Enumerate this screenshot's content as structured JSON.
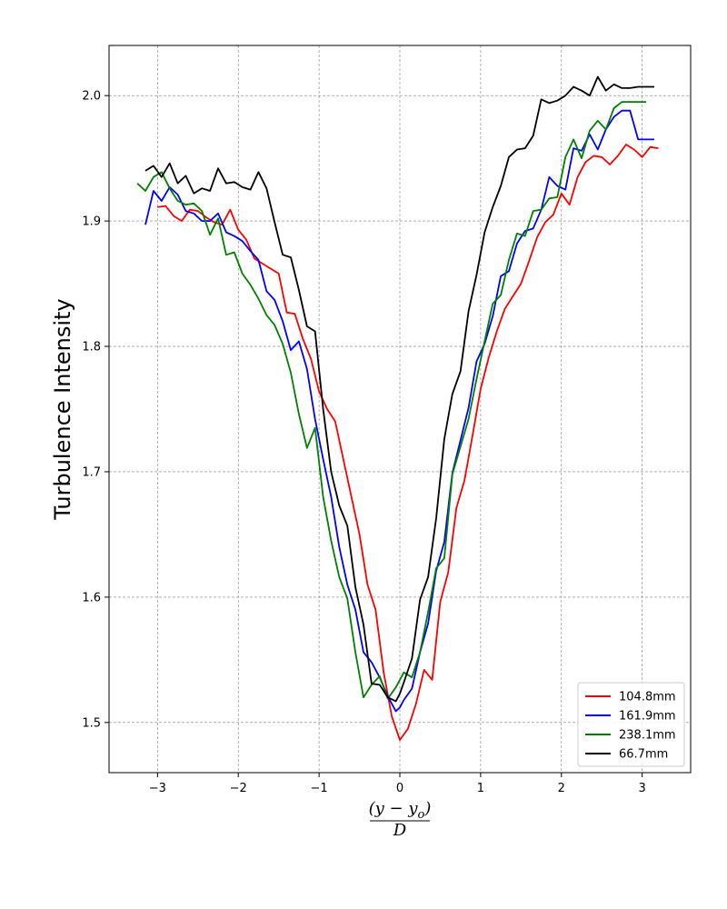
{
  "chart_data": {
    "type": "line",
    "title": "",
    "xlabel_numerator": "(y − y",
    "xlabel_subscript": "o",
    "xlabel_close": ")",
    "xlabel_denominator": "D",
    "ylabel": "Turbulence Intensity",
    "xlim": [
      -3.6,
      3.6
    ],
    "ylim": [
      1.46,
      2.04
    ],
    "xticks": [
      -3,
      -2,
      -1,
      0,
      1,
      2,
      3
    ],
    "xtick_labels": [
      "−3",
      "−2",
      "−1",
      "0",
      "1",
      "2",
      "3"
    ],
    "yticks": [
      1.5,
      1.6,
      1.7,
      1.8,
      1.9,
      2.0
    ],
    "ytick_labels": [
      "1.5",
      "1.6",
      "1.7",
      "1.8",
      "1.9",
      "2.0"
    ],
    "grid": true,
    "legend_position": "bottom-right",
    "series": [
      {
        "name": "104.8mm",
        "color": "#ff0000",
        "x": [
          -3.0,
          -2.9,
          -2.8,
          -2.7,
          -2.6,
          -2.5,
          -2.4,
          -2.3,
          -2.2,
          -2.1,
          -2.0,
          -1.9,
          -1.8,
          -1.7,
          -1.6,
          -1.5,
          -1.4,
          -1.3,
          -1.2,
          -1.1,
          -1.0,
          -0.9,
          -0.8,
          -0.7,
          -0.6,
          -0.5,
          -0.4,
          -0.3,
          -0.2,
          -0.1,
          0.0,
          0.1,
          0.2,
          0.3,
          0.4,
          0.5,
          0.6,
          0.7,
          0.8,
          0.9,
          1.0,
          1.1,
          1.2,
          1.3,
          1.4,
          1.5,
          1.6,
          1.7,
          1.8,
          1.9,
          2.0,
          2.1,
          2.2,
          2.3,
          2.4,
          2.5,
          2.6,
          2.7,
          2.8,
          2.9,
          3.0,
          3.1,
          3.2
        ],
        "y": [
          1.911,
          1.912,
          1.904,
          1.9,
          1.909,
          1.908,
          1.903,
          1.899,
          1.897,
          1.909,
          1.893,
          1.885,
          1.87,
          1.866,
          1.862,
          1.858,
          1.827,
          1.826,
          1.806,
          1.79,
          1.764,
          1.75,
          1.74,
          1.71,
          1.68,
          1.65,
          1.61,
          1.59,
          1.54,
          1.505,
          1.486,
          1.495,
          1.515,
          1.542,
          1.534,
          1.596,
          1.62,
          1.671,
          1.693,
          1.729,
          1.766,
          1.791,
          1.812,
          1.83,
          1.84,
          1.85,
          1.868,
          1.887,
          1.899,
          1.905,
          1.922,
          1.913,
          1.935,
          1.947,
          1.952,
          1.951,
          1.945,
          1.952,
          1.961,
          1.957,
          1.951,
          1.959,
          1.958
        ]
      },
      {
        "name": "161.9mm",
        "color": "#0000ff",
        "x": [
          -3.15,
          -3.05,
          -2.95,
          -2.85,
          -2.75,
          -2.65,
          -2.55,
          -2.45,
          -2.35,
          -2.25,
          -2.15,
          -2.05,
          -1.95,
          -1.85,
          -1.75,
          -1.65,
          -1.55,
          -1.45,
          -1.35,
          -1.25,
          -1.15,
          -1.05,
          -0.95,
          -0.85,
          -0.75,
          -0.65,
          -0.55,
          -0.45,
          -0.35,
          -0.25,
          -0.15,
          -0.05,
          0.0,
          0.05,
          0.15,
          0.25,
          0.35,
          0.45,
          0.55,
          0.65,
          0.75,
          0.85,
          0.95,
          1.05,
          1.15,
          1.25,
          1.35,
          1.45,
          1.55,
          1.65,
          1.75,
          1.85,
          1.95,
          2.05,
          2.15,
          2.25,
          2.35,
          2.45,
          2.55,
          2.65,
          2.75,
          2.85,
          2.95,
          3.05,
          3.15
        ],
        "y": [
          1.897,
          1.924,
          1.916,
          1.927,
          1.921,
          1.908,
          1.906,
          1.9,
          1.9,
          1.906,
          1.891,
          1.888,
          1.884,
          1.876,
          1.869,
          1.844,
          1.837,
          1.82,
          1.797,
          1.804,
          1.782,
          1.742,
          1.71,
          1.68,
          1.64,
          1.61,
          1.59,
          1.556,
          1.548,
          1.536,
          1.521,
          1.509,
          1.512,
          1.518,
          1.527,
          1.556,
          1.579,
          1.621,
          1.644,
          1.699,
          1.725,
          1.751,
          1.788,
          1.802,
          1.824,
          1.856,
          1.86,
          1.882,
          1.892,
          1.894,
          1.909,
          1.935,
          1.928,
          1.925,
          1.958,
          1.956,
          1.969,
          1.957,
          1.973,
          1.983,
          1.988,
          1.988,
          1.965,
          1.965,
          1.965
        ]
      },
      {
        "name": "238.1mm",
        "color": "#008000",
        "x": [
          -3.25,
          -3.15,
          -3.05,
          -2.95,
          -2.85,
          -2.75,
          -2.65,
          -2.55,
          -2.45,
          -2.35,
          -2.25,
          -2.15,
          -2.05,
          -1.95,
          -1.85,
          -1.75,
          -1.65,
          -1.55,
          -1.45,
          -1.35,
          -1.25,
          -1.15,
          -1.05,
          -0.95,
          -0.85,
          -0.75,
          -0.65,
          -0.55,
          -0.45,
          -0.35,
          -0.25,
          -0.15,
          -0.05,
          0.05,
          0.15,
          0.25,
          0.35,
          0.45,
          0.55,
          0.65,
          0.75,
          0.85,
          0.95,
          1.05,
          1.15,
          1.25,
          1.35,
          1.45,
          1.55,
          1.65,
          1.75,
          1.85,
          1.95,
          2.05,
          2.15,
          2.25,
          2.35,
          2.45,
          2.55,
          2.65,
          2.75,
          2.85,
          2.95,
          3.05
        ],
        "y": [
          1.93,
          1.924,
          1.935,
          1.939,
          1.926,
          1.916,
          1.913,
          1.914,
          1.908,
          1.889,
          1.902,
          1.873,
          1.875,
          1.858,
          1.849,
          1.838,
          1.825,
          1.817,
          1.802,
          1.779,
          1.746,
          1.719,
          1.735,
          1.68,
          1.645,
          1.616,
          1.599,
          1.556,
          1.52,
          1.53,
          1.537,
          1.519,
          1.528,
          1.54,
          1.536,
          1.556,
          1.588,
          1.623,
          1.631,
          1.698,
          1.72,
          1.742,
          1.774,
          1.804,
          1.834,
          1.841,
          1.869,
          1.89,
          1.888,
          1.908,
          1.909,
          1.918,
          1.919,
          1.951,
          1.965,
          1.95,
          1.972,
          1.98,
          1.973,
          1.99,
          1.995,
          1.995,
          1.995,
          1.995
        ]
      },
      {
        "name": "66.7mm",
        "color": "#000000",
        "x": [
          -3.15,
          -3.05,
          -2.95,
          -2.85,
          -2.75,
          -2.65,
          -2.55,
          -2.45,
          -2.35,
          -2.25,
          -2.15,
          -2.05,
          -1.95,
          -1.85,
          -1.75,
          -1.65,
          -1.55,
          -1.45,
          -1.35,
          -1.25,
          -1.15,
          -1.05,
          -0.95,
          -0.85,
          -0.75,
          -0.65,
          -0.55,
          -0.45,
          -0.35,
          -0.25,
          -0.15,
          -0.05,
          0.0,
          0.05,
          0.15,
          0.25,
          0.35,
          0.45,
          0.55,
          0.65,
          0.75,
          0.85,
          0.95,
          1.05,
          1.15,
          1.25,
          1.35,
          1.45,
          1.55,
          1.65,
          1.75,
          1.85,
          1.95,
          2.05,
          2.15,
          2.25,
          2.35,
          2.45,
          2.55,
          2.65,
          2.75,
          2.85,
          2.95,
          3.05,
          3.15
        ],
        "y": [
          1.94,
          1.944,
          1.935,
          1.946,
          1.93,
          1.936,
          1.922,
          1.926,
          1.924,
          1.942,
          1.93,
          1.931,
          1.927,
          1.925,
          1.939,
          1.926,
          1.899,
          1.873,
          1.871,
          1.845,
          1.816,
          1.812,
          1.75,
          1.7,
          1.673,
          1.657,
          1.608,
          1.578,
          1.531,
          1.53,
          1.52,
          1.517,
          1.523,
          1.532,
          1.551,
          1.598,
          1.616,
          1.663,
          1.726,
          1.762,
          1.78,
          1.828,
          1.857,
          1.891,
          1.911,
          1.928,
          1.951,
          1.957,
          1.958,
          1.968,
          1.997,
          1.994,
          1.996,
          2.0,
          2.007,
          2.004,
          2.0,
          2.015,
          2.004,
          2.009,
          2.006,
          2.006,
          2.007,
          2.007,
          2.007
        ]
      }
    ]
  }
}
